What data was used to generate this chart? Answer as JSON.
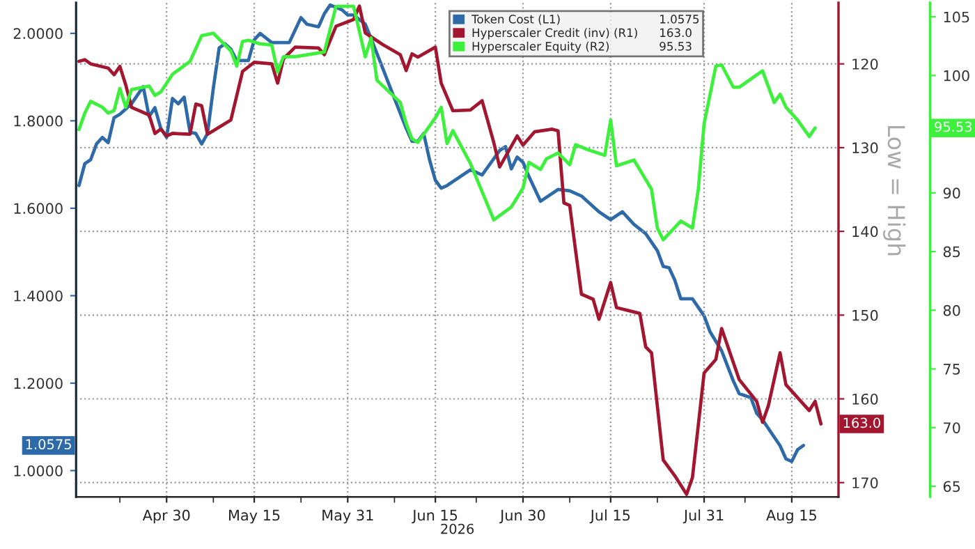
{
  "chart_data": {
    "type": "line",
    "xlabel": "2026",
    "y2label": "Low = High",
    "xlim": [
      "2026-04-14T12:00",
      "2026-08-23"
    ],
    "xticks": [
      {
        "value": "2026-04-22",
        "label": null
      },
      {
        "value": "2026-04-30",
        "label": "Apr 30"
      },
      {
        "value": "2026-05-08",
        "label": null
      },
      {
        "value": "2026-05-15",
        "label": "May 15"
      },
      {
        "value": "2026-05-23",
        "label": null
      },
      {
        "value": "2026-05-31",
        "label": "May 31"
      },
      {
        "value": "2026-06-08",
        "label": null
      },
      {
        "value": "2026-06-15",
        "label": "Jun 15"
      },
      {
        "value": "2026-06-22",
        "label": null
      },
      {
        "value": "2026-06-30",
        "label": "Jun 30"
      },
      {
        "value": "2026-07-08",
        "label": null
      },
      {
        "value": "2026-07-15",
        "label": "Jul 15"
      },
      {
        "value": "2026-07-23",
        "label": null
      },
      {
        "value": "2026-07-31",
        "label": "Jul 31"
      },
      {
        "value": "2026-08-07",
        "label": null
      },
      {
        "value": "2026-08-15",
        "label": "Aug 15"
      }
    ],
    "ylim": [
      0.94,
      2.07
    ],
    "yticks": [
      {
        "value": 1.0,
        "label": "1.0000"
      },
      {
        "value": 1.2,
        "label": "1.2000"
      },
      {
        "value": 1.4,
        "label": "1.4000"
      },
      {
        "value": 1.6,
        "label": "1.6000"
      },
      {
        "value": 1.8,
        "label": "1.8000"
      },
      {
        "value": 2.0,
        "label": "2.0000"
      }
    ],
    "y2lim": [
      171.7,
      112.7
    ],
    "y2ticks": [
      120,
      130,
      140,
      150,
      160,
      170
    ],
    "y3lim": [
      64.1,
      106.2
    ],
    "y3ticks": [
      65,
      70,
      75,
      80,
      85,
      90,
      100,
      105
    ],
    "grid": true,
    "legend": "top right",
    "annotations": [
      "1.0575",
      "163.0",
      "95.53",
      "1.0575",
      "163.0",
      "95.53"
    ],
    "series": [
      {
        "name": "Token Cost (L1)",
        "color": "#2e6aa8",
        "axis": "y",
        "x": [
          "2026-04-15",
          "2026-04-16",
          "2026-04-17",
          "2026-04-18",
          "2026-04-19",
          "2026-04-20",
          "2026-04-21",
          "2026-04-22",
          "2026-04-24",
          "2026-04-26",
          "2026-04-27",
          "2026-04-28",
          "2026-04-29",
          "2026-04-30",
          "2026-05-01",
          "2026-05-02",
          "2026-05-03",
          "2026-05-04",
          "2026-05-05",
          "2026-05-06",
          "2026-05-07",
          "2026-05-08",
          "2026-05-09",
          "2026-05-10",
          "2026-05-11",
          "2026-05-12",
          "2026-05-14",
          "2026-05-15",
          "2026-05-16",
          "2026-05-18",
          "2026-05-21",
          "2026-05-23",
          "2026-05-24",
          "2026-05-26",
          "2026-05-27",
          "2026-05-28",
          "2026-05-30",
          "2026-05-31",
          "2026-06-01",
          "2026-06-03",
          "2026-06-04",
          "2026-06-06",
          "2026-06-08",
          "2026-06-10",
          "2026-06-11",
          "2026-06-12",
          "2026-06-13",
          "2026-06-14",
          "2026-06-15",
          "2026-06-16",
          "2026-06-17",
          "2026-06-21",
          "2026-06-23",
          "2026-06-26",
          "2026-06-27",
          "2026-06-28",
          "2026-06-29",
          "2026-06-30",
          "2026-07-01",
          "2026-07-03",
          "2026-07-06",
          "2026-07-08",
          "2026-07-10",
          "2026-07-13",
          "2026-07-15",
          "2026-07-17",
          "2026-07-19",
          "2026-07-21",
          "2026-07-23",
          "2026-07-24",
          "2026-07-25",
          "2026-07-26",
          "2026-07-27",
          "2026-07-29",
          "2026-07-31",
          "2026-08-01",
          "2026-08-03",
          "2026-08-05",
          "2026-08-06",
          "2026-08-08",
          "2026-08-09",
          "2026-08-10",
          "2026-08-13",
          "2026-08-14",
          "2026-08-15",
          "2026-08-16",
          "2026-08-17"
        ],
        "values": [
          1.652,
          1.702,
          1.711,
          1.747,
          1.762,
          1.75,
          1.807,
          1.815,
          1.839,
          1.878,
          1.81,
          1.83,
          1.783,
          1.762,
          1.851,
          1.839,
          1.854,
          1.774,
          1.771,
          1.747,
          1.771,
          1.875,
          1.967,
          1.976,
          1.964,
          1.938,
          1.938,
          1.985,
          2.0,
          1.979,
          1.979,
          2.036,
          2.021,
          2.015,
          2.045,
          2.065,
          2.054,
          2.042,
          2.042,
          2.021,
          1.988,
          1.92,
          1.851,
          1.783,
          1.753,
          1.753,
          1.771,
          1.711,
          1.664,
          1.646,
          1.652,
          1.688,
          1.676,
          1.732,
          1.741,
          1.69,
          1.717,
          1.705,
          1.673,
          1.616,
          1.643,
          1.64,
          1.628,
          1.592,
          1.574,
          1.592,
          1.563,
          1.542,
          1.503,
          1.467,
          1.464,
          1.435,
          1.393,
          1.393,
          1.354,
          1.318,
          1.274,
          1.205,
          1.176,
          1.167,
          1.131,
          1.116,
          1.057,
          1.027,
          1.021,
          1.048,
          1.0575
        ]
      },
      {
        "name": "Hyperscaler Credit (inv) (R1)",
        "color": "#a3162f",
        "axis": "y2",
        "x": [
          "2026-04-15",
          "2026-04-16",
          "2026-04-17",
          "2026-04-20",
          "2026-04-21",
          "2026-04-22",
          "2026-04-23",
          "2026-04-24",
          "2026-04-27",
          "2026-04-28",
          "2026-04-29",
          "2026-04-30",
          "2026-05-01",
          "2026-05-04",
          "2026-05-05",
          "2026-05-06",
          "2026-05-07",
          "2026-05-11",
          "2026-05-13",
          "2026-05-15",
          "2026-05-18",
          "2026-05-19",
          "2026-05-20",
          "2026-05-22",
          "2026-05-26",
          "2026-05-27",
          "2026-05-29",
          "2026-06-01",
          "2026-06-02",
          "2026-06-03",
          "2026-06-06",
          "2026-06-09",
          "2026-06-10",
          "2026-06-11",
          "2026-06-12",
          "2026-06-15",
          "2026-06-16",
          "2026-06-18",
          "2026-06-21",
          "2026-06-23",
          "2026-06-25",
          "2026-06-26",
          "2026-06-29",
          "2026-06-30",
          "2026-07-02",
          "2026-07-05",
          "2026-07-06",
          "2026-07-07",
          "2026-07-08",
          "2026-07-09",
          "2026-07-10",
          "2026-07-12",
          "2026-07-13",
          "2026-07-15",
          "2026-07-16",
          "2026-07-20",
          "2026-07-21",
          "2026-07-22",
          "2026-07-24",
          "2026-07-26",
          "2026-07-28",
          "2026-07-29",
          "2026-07-31",
          "2026-08-02",
          "2026-08-03",
          "2026-08-06",
          "2026-08-09",
          "2026-08-10",
          "2026-08-11",
          "2026-08-13",
          "2026-08-14",
          "2026-08-18",
          "2026-08-19",
          "2026-08-20"
        ],
        "values": [
          119.7,
          119.5,
          120,
          120.5,
          121.3,
          120.3,
          122.5,
          125.2,
          126.1,
          128.3,
          127.8,
          128.6,
          128.3,
          128.4,
          124.8,
          125,
          128.4,
          126.7,
          120.9,
          119.8,
          120,
          122.3,
          119.4,
          118,
          118.1,
          118.9,
          115.5,
          114.7,
          113.1,
          116.3,
          117.7,
          118.9,
          120.8,
          118.8,
          119.2,
          118,
          122.3,
          125.6,
          125.5,
          124.4,
          129.4,
          132.3,
          128.6,
          129.7,
          128.1,
          127.8,
          128,
          136.6,
          136.9,
          142.3,
          147.5,
          148.1,
          150.5,
          146.1,
          149.1,
          149.8,
          153.8,
          154.5,
          167.3,
          169.2,
          171.4,
          169.4,
          156.9,
          155.3,
          151.6,
          157.7,
          160.3,
          162.8,
          160.8,
          154.5,
          158.3,
          161.4,
          160.3,
          163.0
        ]
      },
      {
        "name": "Hyperscaler Equity (R2)",
        "color": "#3cf03c",
        "axis": "y3",
        "x": [
          "2026-04-15",
          "2026-04-16",
          "2026-04-17",
          "2026-04-19",
          "2026-04-20",
          "2026-04-21",
          "2026-04-22",
          "2026-04-23",
          "2026-04-24",
          "2026-04-27",
          "2026-04-28",
          "2026-04-29",
          "2026-05-01",
          "2026-05-04",
          "2026-05-06",
          "2026-05-08",
          "2026-05-11",
          "2026-05-12",
          "2026-05-13",
          "2026-05-14",
          "2026-05-16",
          "2026-05-18",
          "2026-05-19",
          "2026-05-20",
          "2026-05-22",
          "2026-05-27",
          "2026-05-29",
          "2026-06-01",
          "2026-06-03",
          "2026-06-04",
          "2026-06-05",
          "2026-06-09",
          "2026-06-10",
          "2026-06-11",
          "2026-06-12",
          "2026-06-15",
          "2026-06-16",
          "2026-06-17",
          "2026-06-18",
          "2026-06-21",
          "2026-06-25",
          "2026-06-28",
          "2026-06-30",
          "2026-07-01",
          "2026-07-03",
          "2026-07-04",
          "2026-07-06",
          "2026-07-08",
          "2026-07-09",
          "2026-07-11",
          "2026-07-14",
          "2026-07-15",
          "2026-07-16",
          "2026-07-19",
          "2026-07-22",
          "2026-07-23",
          "2026-07-24",
          "2026-07-27",
          "2026-07-29",
          "2026-07-30",
          "2026-07-31",
          "2026-08-02",
          "2026-08-03",
          "2026-08-05",
          "2026-08-06",
          "2026-08-10",
          "2026-08-12",
          "2026-08-13",
          "2026-08-14",
          "2026-08-16",
          "2026-08-18",
          "2026-08-19"
        ],
        "values": [
          95.4,
          96.8,
          97.8,
          97.3,
          96.8,
          97,
          98.9,
          97.3,
          98.8,
          99.1,
          98.3,
          98.6,
          100.1,
          101.2,
          103.4,
          103.6,
          102.1,
          100.8,
          102.9,
          103,
          102.7,
          102.6,
          100.3,
          101.6,
          101.6,
          102,
          105.9,
          105.9,
          101.6,
          103.2,
          99.6,
          97.7,
          95.9,
          94.6,
          94.3,
          96.4,
          97.3,
          94.2,
          95.3,
          92.5,
          87.7,
          88.8,
          90.4,
          92.6,
          92,
          92.9,
          93.4,
          92.4,
          94.1,
          93.7,
          93.2,
          96.2,
          92.3,
          92.8,
          90.3,
          87,
          86,
          87.6,
          87,
          90.3,
          95.9,
          100.8,
          100.9,
          99,
          99,
          100.4,
          97.7,
          98.4,
          97.3,
          96.2,
          94.8,
          95.53
        ]
      }
    ]
  }
}
